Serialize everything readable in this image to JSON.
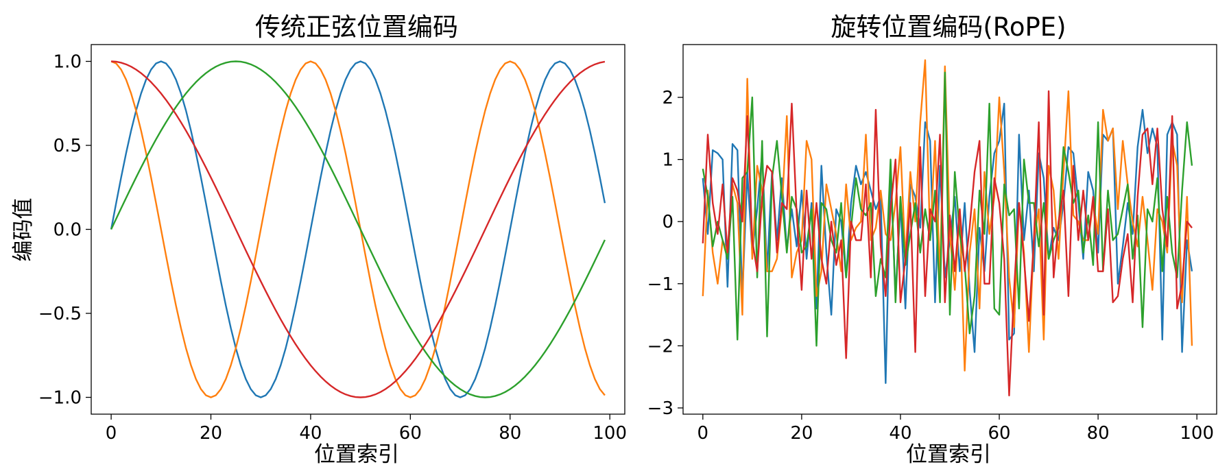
{
  "figure": {
    "colors": {
      "c0": "#1f77b4",
      "c1": "#ff7f0e",
      "c2": "#2ca02c",
      "c3": "#d62728"
    }
  },
  "chart_data": [
    {
      "type": "line",
      "title": "传统正弦位置编码",
      "xlabel": "位置索引",
      "ylabel": "编码值",
      "xlim": [
        -4,
        103
      ],
      "ylim": [
        -1.1,
        1.1
      ],
      "xticks": [
        0,
        20,
        40,
        60,
        80,
        100
      ],
      "xtick_labels": [
        "0",
        "20",
        "40",
        "60",
        "80",
        "100"
      ],
      "yticks": [
        1.0,
        0.5,
        0.0,
        -0.5,
        -1.0
      ],
      "ytick_labels": [
        "1.0",
        "0.5",
        "0.0",
        "−0.5",
        "−1.0"
      ],
      "grid": false,
      "legend": "none",
      "x": {
        "start": 0,
        "end": 99,
        "step": 1
      },
      "series": [
        {
          "function": "sin",
          "period": 40,
          "phase": 0,
          "color": "#1f77b4"
        },
        {
          "function": "cos",
          "period": 40,
          "phase": 0,
          "color": "#ff7f0e"
        },
        {
          "function": "sin",
          "period": 100,
          "phase": 0,
          "color": "#2ca02c"
        },
        {
          "function": "cos",
          "period": 100,
          "phase": 0,
          "color": "#d62728"
        }
      ]
    },
    {
      "type": "line",
      "title": "旋转位置编码(RoPE)",
      "xlabel": "位置索引",
      "ylabel": "",
      "xlim": [
        -4,
        104
      ],
      "ylim": [
        -3.1,
        2.85
      ],
      "xticks": [
        0,
        20,
        40,
        60,
        80,
        100
      ],
      "xtick_labels": [
        "0",
        "20",
        "40",
        "60",
        "80",
        "100"
      ],
      "yticks": [
        2,
        1,
        0,
        -1,
        -2,
        -3
      ],
      "ytick_labels": [
        "2",
        "1",
        "0",
        "−1",
        "−2",
        "−3"
      ],
      "grid": false,
      "legend": "none",
      "x": {
        "start": 0,
        "end": 99,
        "step": 1
      },
      "series": [
        {
          "color": "#1f77b4",
          "values": [
            0.7,
            -0.2,
            1.15,
            1.1,
            1.0,
            -1.05,
            1.25,
            1.15,
            -1.2,
            0.8,
            -0.5,
            0.2,
            1.1,
            -0.8,
            0.8,
            -0.3,
            0.7,
            -0.45,
            0.2,
            -0.4,
            0.5,
            -0.6,
            0.3,
            -1.4,
            0.9,
            -0.5,
            -1.5,
            0.2,
            0.0,
            -0.9,
            0.3,
            0.9,
            0.6,
            0.8,
            0.5,
            0.2,
            0.4,
            -2.6,
            0.8,
            -1.2,
            0.3,
            -1.4,
            0.6,
            0.4,
            -0.1,
            1.6,
            1.3,
            -1.3,
            0.9,
            -0.9,
            -0.3,
            0.4,
            -0.8,
            0.3,
            -1.1,
            -2.1,
            -0.1,
            -0.8,
            0.4,
            1.1,
            1.3,
            1.9,
            -1.9,
            -1.8,
            1.4,
            -0.3,
            0.5,
            -0.8,
            1.1,
            0.7,
            -0.6,
            -0.1,
            -0.3,
            0.3,
            1.2,
            1.1,
            0.3,
            -0.6,
            0.8,
            0.5,
            -0.5,
            1.4,
            1.3,
            1.5,
            -1.0,
            -0.4,
            0.3,
            -0.2,
            1.2,
            1.8,
            1.1,
            1.5,
            1.2,
            -1.9,
            1.4,
            1.6,
            1.4,
            -2.1,
            -0.3,
            -0.8
          ]
        },
        {
          "color": "#ff7f0e",
          "values": [
            -1.2,
            0.5,
            -0.5,
            -1.0,
            -0.3,
            -0.5,
            0.6,
            0.3,
            -1.5,
            2.3,
            -0.6,
            0.9,
            0.5,
            -0.8,
            -0.8,
            -0.6,
            0.2,
            1.7,
            -0.9,
            -0.5,
            -0.3,
            1.3,
            1.0,
            -1.2,
            -0.8,
            0.6,
            0.2,
            -0.2,
            -0.8,
            0.6,
            -0.3,
            -0.1,
            0.0,
            1.4,
            -0.3,
            -0.1,
            0.5,
            -0.2,
            -0.3,
            0.3,
            1.2,
            -0.6,
            0.8,
            0.0,
            1.6,
            2.6,
            -0.3,
            1.3,
            -0.9,
            2.5,
            -0.2,
            -1.1,
            0.2,
            -2.4,
            -0.5,
            0.2,
            -1.4,
            0.8,
            -0.2,
            0.4,
            2.0,
            0.8,
            -0.9,
            -1.7,
            0.3,
            -0.5,
            -2.1,
            -0.3,
            0.2,
            -1.9,
            0.9,
            0.5,
            -0.6,
            0.8,
            2.1,
            0.1,
            0.0,
            -0.3,
            -0.3,
            0.3,
            -0.2,
            1.8,
            1.3,
            1.5,
            0.2,
            1.3,
            0.6,
            0.0,
            -0.4,
            0.4,
            -0.3,
            -1.1,
            0.2,
            0.0,
            -0.5,
            1.3,
            0.9,
            -1.3,
            0.4,
            -2.0
          ]
        },
        {
          "color": "#2ca02c",
          "values": [
            0.85,
            0.4,
            -0.4,
            0.0,
            -0.3,
            -0.6,
            0.4,
            -1.9,
            0.7,
            0.8,
            2.0,
            -0.9,
            1.3,
            -1.85,
            0.7,
            1.3,
            0.4,
            -0.5,
            0.4,
            0.2,
            -0.5,
            -0.4,
            0.2,
            -2.0,
            0.3,
            0.2,
            -0.3,
            -0.5,
            0.3,
            -0.9,
            -0.1,
            0.7,
            0.2,
            0.1,
            0.3,
            -1.2,
            -0.6,
            -0.9,
            1.0,
            -1.3,
            0.4,
            -0.7,
            -0.2,
            0.3,
            -0.5,
            0.2,
            -0.3,
            0.5,
            -1.3,
            2.4,
            -1.5,
            0.8,
            -0.2,
            -0.7,
            -1.8,
            -1.2,
            0.5,
            -0.2,
            1.9,
            -1.4,
            -1.5,
            0.6,
            0.1,
            0.2,
            -1.4,
            1.0,
            0.3,
            0.3,
            -0.4,
            0.3,
            -0.6,
            -0.3,
            -0.1,
            1.2,
            0.8,
            0.3,
            0.5,
            -0.5,
            0.1,
            -0.7,
            1.6,
            -0.8,
            0.5,
            -0.3,
            -0.2,
            0.2,
            0.6,
            -0.6,
            0.1,
            -1.7,
            0.2,
            0.0,
            0.7,
            -0.8,
            0.4,
            -0.5,
            -0.9,
            0.5,
            1.6,
            0.9
          ]
        },
        {
          "color": "#d62728",
          "values": [
            -0.35,
            1.4,
            0.3,
            -0.2,
            0.6,
            -0.5,
            0.7,
            0.5,
            0.0,
            1.7,
            -0.3,
            -0.8,
            0.4,
            0.9,
            0.8,
            -0.5,
            0.3,
            0.2,
            1.9,
            0.1,
            -1.1,
            0.5,
            -0.6,
            0.3,
            -0.6,
            -1.0,
            0.0,
            -0.7,
            -0.3,
            -2.2,
            0.0,
            -0.3,
            -0.3,
            0.6,
            -0.9,
            1.8,
            -0.4,
            -1.2,
            0.2,
            1.0,
            -1.3,
            -0.6,
            0.3,
            -2.1,
            1.2,
            -1.2,
            0.2,
            0.0,
            1.4,
            -1.3,
            0.1,
            -0.8,
            0.2,
            -0.8,
            -0.1,
            0.8,
            1.3,
            -1.0,
            -1.0,
            0.7,
            0.3,
            -0.6,
            -2.8,
            -1.1,
            0.3,
            -0.6,
            -1.6,
            -0.3,
            1.6,
            -1.5,
            2.1,
            -0.9,
            0.0,
            0.5,
            -1.2,
            0.9,
            -0.3,
            0.5,
            -0.3,
            0.4,
            -0.8,
            -0.8,
            0.2,
            -1.3,
            -1.2,
            -0.6,
            -0.2,
            -1.3,
            0.4,
            1.4,
            1.5,
            0.6,
            1.5,
            0.2,
            -0.4,
            1.7,
            -1.4,
            -1.0,
            0.0,
            -0.1
          ]
        }
      ]
    }
  ]
}
